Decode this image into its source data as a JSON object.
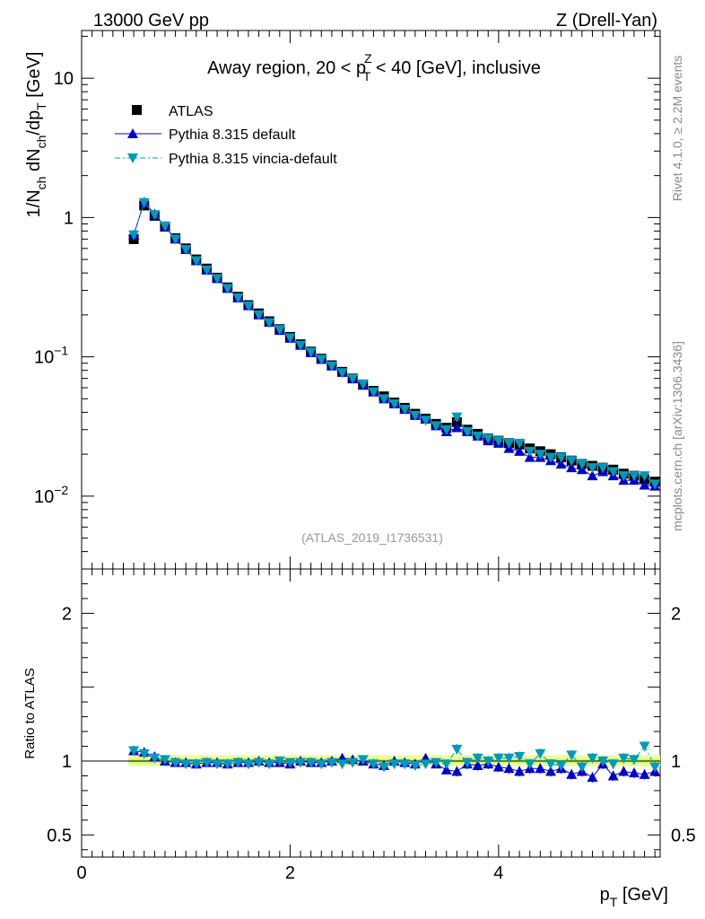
{
  "header": {
    "left": "13000 GeV pp",
    "right": "Z (Drell-Yan)"
  },
  "side": {
    "top": "Rivet 4.1.0, ≥ 2.2M events",
    "bottom": "mcplots.cern.ch [arXiv:1306.3436]"
  },
  "chart_data": [
    {
      "panel": "main",
      "type": "scatter",
      "title": {
        "prefix": "Away region, 20 < p",
        "sup": "Z",
        "sub": "T",
        "suffix": " < 40 [GeV], inclusive"
      },
      "ylabel": "1/N_ch dN_ch/dp_T [GeV]",
      "ylabel_parts": {
        "a": "1/N",
        "a_sub": "ch",
        "b": " dN",
        "b_sub": "ch",
        "c": "/dp",
        "c_sub": "T",
        "d": " [GeV]"
      },
      "yscale": "log",
      "ylim": [
        0.003,
        22
      ],
      "xlim": [
        0,
        5.55
      ],
      "ytick_labels": [
        {
          "value": 10,
          "base": "10",
          "exp": ""
        },
        {
          "value": 1,
          "base": "1",
          "exp": ""
        },
        {
          "value": 0.1,
          "base": "10",
          "exp": "−1"
        },
        {
          "value": 0.01,
          "base": "10",
          "exp": "−2"
        }
      ],
      "watermark": "(ATLAS_2019_I1736531)",
      "legend": {
        "placement": "top-left",
        "entries": [
          {
            "label": "ATLAS",
            "color": "#000000",
            "marker": "square"
          },
          {
            "label": "Pythia 8.315 default",
            "color": "#0000cc",
            "marker": "triangle-up"
          },
          {
            "label": "Pythia 8.315 vincia-default",
            "color": "#0099bb",
            "marker": "triangle-down"
          }
        ]
      },
      "x": [
        0.5,
        0.6,
        0.7,
        0.8,
        0.9,
        1.0,
        1.1,
        1.2,
        1.3,
        1.4,
        1.5,
        1.6,
        1.7,
        1.8,
        1.9,
        2.0,
        2.1,
        2.2,
        2.3,
        2.4,
        2.5,
        2.6,
        2.7,
        2.8,
        2.9,
        3.0,
        3.1,
        3.2,
        3.3,
        3.4,
        3.5,
        3.6,
        3.7,
        3.8,
        3.9,
        4.0,
        4.1,
        4.2,
        4.3,
        4.4,
        4.5,
        4.6,
        4.7,
        4.8,
        4.9,
        5.0,
        5.1,
        5.2,
        5.3,
        5.4,
        5.5
      ],
      "series": [
        {
          "name": "ATLAS",
          "values": [
            0.7,
            1.22,
            1.03,
            0.86,
            0.71,
            0.6,
            0.5,
            0.43,
            0.37,
            0.315,
            0.27,
            0.235,
            0.205,
            0.18,
            0.158,
            0.139,
            0.123,
            0.109,
            0.097,
            0.087,
            0.078,
            0.07,
            0.063,
            0.057,
            0.052,
            0.047,
            0.043,
            0.039,
            0.036,
            0.033,
            0.031,
            0.034,
            0.03,
            0.028,
            0.026,
            0.025,
            0.024,
            0.0235,
            0.022,
            0.021,
            0.02,
            0.019,
            0.018,
            0.017,
            0.0165,
            0.016,
            0.0155,
            0.0145,
            0.014,
            0.0132,
            0.0127
          ]
        },
        {
          "name": "Pythia 8.315 default",
          "values": [
            0.75,
            1.29,
            1.06,
            0.86,
            0.7,
            0.59,
            0.49,
            0.42,
            0.365,
            0.31,
            0.265,
            0.233,
            0.2,
            0.177,
            0.155,
            0.136,
            0.121,
            0.107,
            0.096,
            0.086,
            0.078,
            0.07,
            0.063,
            0.056,
            0.05,
            0.046,
            0.042,
            0.038,
            0.036,
            0.032,
            0.029,
            0.031,
            0.029,
            0.027,
            0.025,
            0.024,
            0.022,
            0.021,
            0.019,
            0.019,
            0.018,
            0.017,
            0.016,
            0.0155,
            0.014,
            0.015,
            0.014,
            0.013,
            0.013,
            0.012,
            0.0118
          ]
        },
        {
          "name": "Pythia 8.315 vincia-default",
          "values": [
            0.75,
            1.28,
            1.05,
            0.87,
            0.7,
            0.59,
            0.49,
            0.42,
            0.365,
            0.31,
            0.265,
            0.232,
            0.2,
            0.176,
            0.157,
            0.137,
            0.121,
            0.108,
            0.096,
            0.086,
            0.077,
            0.07,
            0.064,
            0.056,
            0.05,
            0.046,
            0.042,
            0.038,
            0.035,
            0.032,
            0.03,
            0.037,
            0.029,
            0.027,
            0.026,
            0.025,
            0.024,
            0.024,
            0.021,
            0.02,
            0.019,
            0.019,
            0.018,
            0.017,
            0.016,
            0.016,
            0.015,
            0.014,
            0.014,
            0.014,
            0.0122
          ]
        }
      ]
    },
    {
      "panel": "ratio",
      "type": "scatter",
      "ylabel": "Ratio to ATLAS",
      "xlabel": "p_T [GeV]",
      "xlabel_parts": {
        "a": "p",
        "a_sub": "T",
        "b": " [GeV]"
      },
      "ylim": [
        0.35,
        2.3
      ],
      "xlim": [
        0,
        5.55
      ],
      "ytick_labels": [
        {
          "value": 2,
          "label": "2"
        },
        {
          "value": 1,
          "label": "1"
        },
        {
          "value": 0.5,
          "label": "0.5"
        }
      ],
      "xtick_labels": [
        {
          "value": 0,
          "label": "0"
        },
        {
          "value": 2,
          "label": "2"
        },
        {
          "value": 4,
          "label": "4"
        }
      ],
      "x": [
        0.5,
        0.6,
        0.7,
        0.8,
        0.9,
        1.0,
        1.1,
        1.2,
        1.3,
        1.4,
        1.5,
        1.6,
        1.7,
        1.8,
        1.9,
        2.0,
        2.1,
        2.2,
        2.3,
        2.4,
        2.5,
        2.6,
        2.7,
        2.8,
        2.9,
        3.0,
        3.1,
        3.2,
        3.3,
        3.4,
        3.5,
        3.6,
        3.7,
        3.8,
        3.9,
        4.0,
        4.1,
        4.2,
        4.3,
        4.4,
        4.5,
        4.6,
        4.7,
        4.8,
        4.9,
        5.0,
        5.1,
        5.2,
        5.3,
        5.4,
        5.5
      ],
      "band": {
        "name": "ATLAS uncertainty",
        "color": "#ccff66",
        "inner": [
          0.985,
          1.015
        ],
        "outer": [
          0.965,
          1.04
        ]
      },
      "series": [
        {
          "name": "Pythia 8.315 default",
          "values": [
            1.07,
            1.06,
            1.03,
            1.0,
            0.99,
            0.99,
            0.98,
            0.99,
            0.99,
            0.98,
            0.99,
            0.99,
            1.0,
            0.99,
            0.99,
            0.98,
            1.0,
            0.99,
            0.99,
            1.0,
            1.02,
            1.01,
            1.0,
            0.98,
            0.97,
            1.0,
            0.99,
            0.98,
            1.02,
            0.98,
            0.94,
            0.93,
            0.98,
            0.97,
            0.98,
            0.96,
            0.95,
            0.93,
            0.95,
            0.95,
            0.93,
            0.95,
            0.91,
            0.93,
            0.89,
            0.98,
            0.9,
            0.93,
            0.92,
            0.91,
            0.93
          ]
        },
        {
          "name": "Pythia 8.315 vincia-default",
          "values": [
            1.07,
            1.05,
            1.02,
            1.01,
            0.99,
            0.98,
            0.98,
            0.99,
            0.98,
            0.98,
            0.99,
            0.98,
            0.99,
            0.98,
            1.0,
            0.99,
            0.99,
            0.99,
            0.98,
            0.99,
            0.98,
            0.99,
            1.01,
            0.98,
            0.96,
            0.98,
            0.98,
            0.97,
            0.98,
            0.99,
            0.98,
            1.08,
            0.99,
            1.02,
            1.0,
            1.02,
            1.02,
            1.03,
            0.98,
            1.05,
            0.98,
            0.97,
            1.04,
            0.96,
            1.02,
            1.0,
            0.98,
            1.02,
            1.01,
            1.1,
            0.96
          ]
        }
      ]
    }
  ]
}
